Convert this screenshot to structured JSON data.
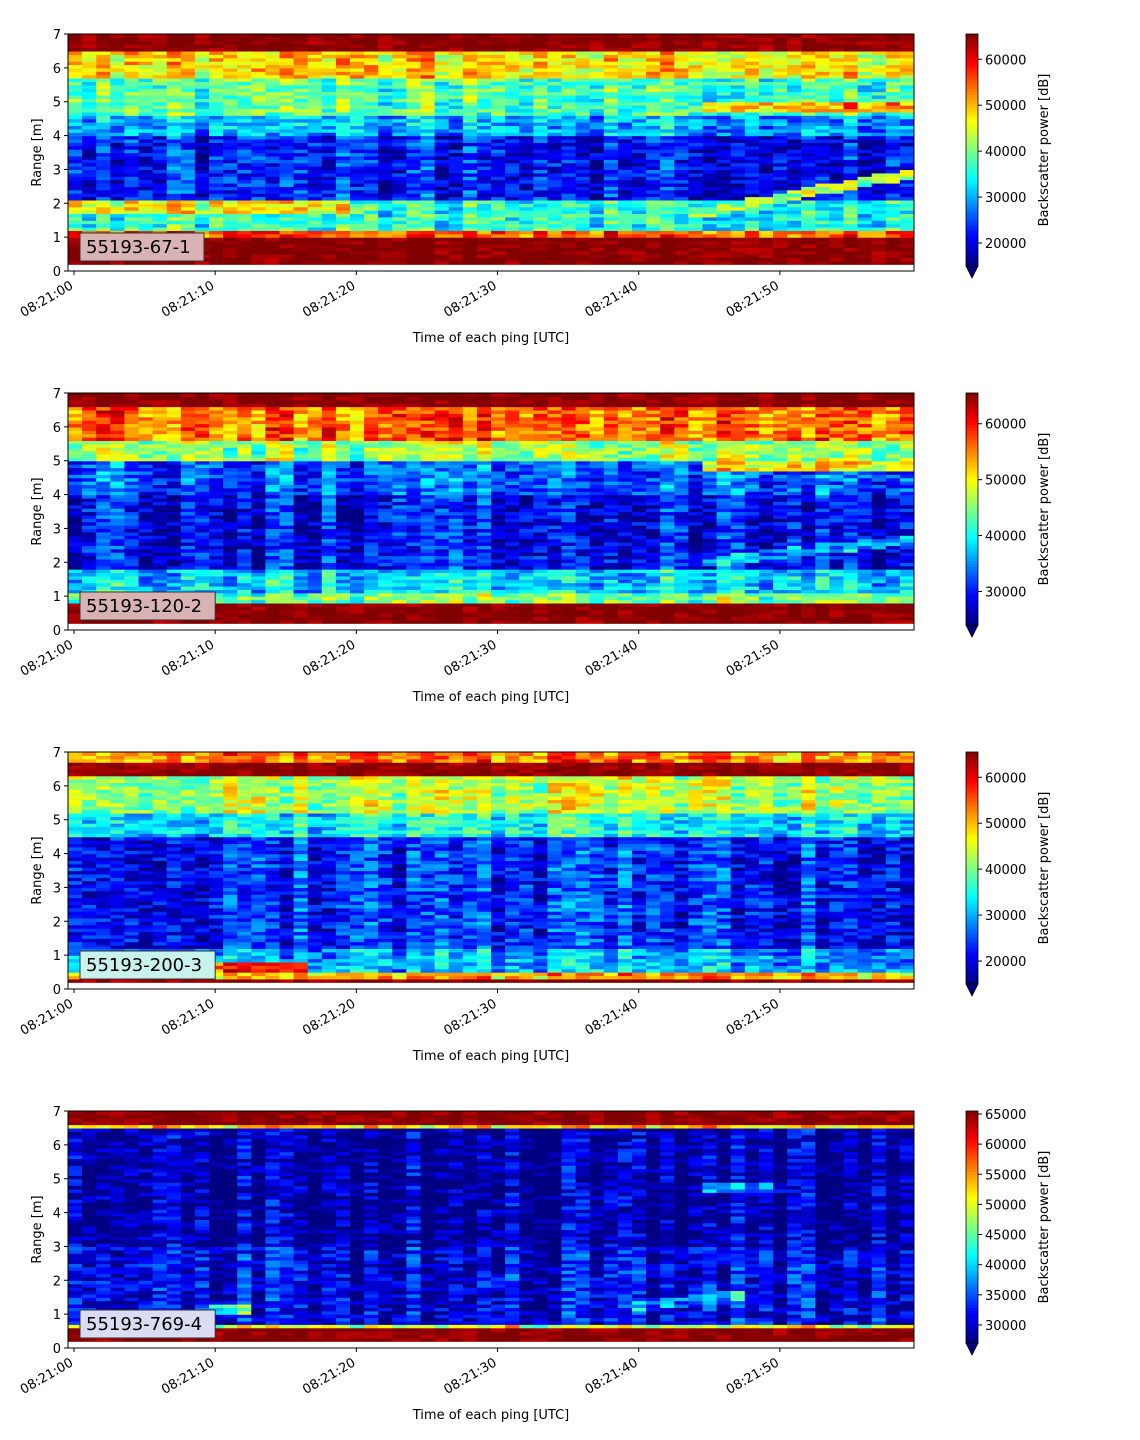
{
  "chart_data": [
    {
      "type": "heatmap",
      "label": "55193-67-1",
      "xlabel": "Time of each ping [UTC]",
      "ylabel": "Range [m]",
      "colorbar_label": "Backscatter power [dB]",
      "colormap": "jet",
      "x_ticks": [
        "08:21:00",
        "08:21:10",
        "08:21:20",
        "08:21:30",
        "08:21:40",
        "08:21:50"
      ],
      "x_range_seconds": [
        0,
        59.5
      ],
      "y_ticks": [
        "0",
        "1",
        "2",
        "3",
        "4",
        "5",
        "6",
        "7"
      ],
      "ylim": [
        0,
        7
      ],
      "cbar_ticks": [
        "20000",
        "30000",
        "40000",
        "50000",
        "60000"
      ],
      "cbar_range": [
        15000,
        65500
      ],
      "cbar_extend": "min",
      "label_box_color": "#d9b3b3",
      "bands": [
        {
          "lo": 0.2,
          "hi": 1.05,
          "value": 65000
        },
        {
          "lo": 1.05,
          "hi": 1.2,
          "value": 55000
        },
        {
          "lo": 1.2,
          "hi": 2.1,
          "value": 36000
        },
        {
          "lo": 1.7,
          "hi": 2.1,
          "value": 46000,
          "t_end": 20
        },
        {
          "lo": 2.1,
          "hi": 4.0,
          "value": 22000
        },
        {
          "lo": 4.0,
          "hi": 4.6,
          "value": 30000
        },
        {
          "lo": 4.6,
          "hi": 5.7,
          "value": 38000
        },
        {
          "lo": 5.7,
          "hi": 6.5,
          "value": 48000
        },
        {
          "lo": 6.5,
          "hi": 7.0,
          "value": 64000
        }
      ],
      "features": [
        {
          "t0": 44,
          "r0": 1.7,
          "t1": 59.5,
          "r1": 2.9,
          "value": 44000
        },
        {
          "t0": 45,
          "r0": 4.85,
          "t1": 59.5,
          "r1": 4.85,
          "value": 52000
        }
      ]
    },
    {
      "type": "heatmap",
      "label": "55193-120-2",
      "xlabel": "Time of each ping [UTC]",
      "ylabel": "Range [m]",
      "colorbar_label": "Backscatter power [dB]",
      "colormap": "jet",
      "x_ticks": [
        "08:21:00",
        "08:21:10",
        "08:21:20",
        "08:21:30",
        "08:21:40",
        "08:21:50"
      ],
      "x_range_seconds": [
        0,
        59.5
      ],
      "y_ticks": [
        "0",
        "1",
        "2",
        "3",
        "4",
        "5",
        "6",
        "7"
      ],
      "ylim": [
        0,
        7
      ],
      "cbar_ticks": [
        "30000",
        "40000",
        "50000",
        "60000"
      ],
      "cbar_range": [
        24000,
        65500
      ],
      "cbar_extend": "min",
      "label_box_color": "#d9b3b3",
      "bands": [
        {
          "lo": 0.2,
          "hi": 0.85,
          "value": 65000
        },
        {
          "lo": 0.85,
          "hi": 1.1,
          "value": 45000
        },
        {
          "lo": 1.1,
          "hi": 1.8,
          "value": 38000
        },
        {
          "lo": 1.8,
          "hi": 4.0,
          "value": 29000
        },
        {
          "lo": 4.0,
          "hi": 5.0,
          "value": 33000
        },
        {
          "lo": 5.0,
          "hi": 5.6,
          "value": 46000
        },
        {
          "lo": 5.6,
          "hi": 6.6,
          "value": 56000
        },
        {
          "lo": 6.6,
          "hi": 7.0,
          "value": 65000
        }
      ],
      "features": [
        {
          "t0": 44,
          "r0": 2.0,
          "t1": 59.5,
          "r1": 2.7,
          "value": 36000
        },
        {
          "t0": 45,
          "r0": 4.85,
          "t1": 59.5,
          "r1": 4.85,
          "value": 50000
        }
      ]
    },
    {
      "type": "heatmap",
      "label": "55193-200-3",
      "xlabel": "Time of each ping [UTC]",
      "ylabel": "Range [m]",
      "colorbar_label": "Backscatter power [dB]",
      "colormap": "jet",
      "x_ticks": [
        "08:21:00",
        "08:21:10",
        "08:21:20",
        "08:21:30",
        "08:21:40",
        "08:21:50"
      ],
      "x_range_seconds": [
        0,
        59.5
      ],
      "y_ticks": [
        "0",
        "1",
        "2",
        "3",
        "4",
        "5",
        "6",
        "7"
      ],
      "ylim": [
        0,
        7
      ],
      "cbar_ticks": [
        "20000",
        "30000",
        "40000",
        "50000",
        "60000"
      ],
      "cbar_range": [
        15000,
        65500
      ],
      "cbar_extend": "min",
      "label_box_color": "#c8f2ec",
      "bands": [
        {
          "lo": 0.2,
          "hi": 0.3,
          "value": 65000
        },
        {
          "lo": 0.3,
          "hi": 0.55,
          "value": 50000
        },
        {
          "lo": 0.55,
          "hi": 1.2,
          "value": 30000
        },
        {
          "lo": 1.2,
          "hi": 4.5,
          "value": 23000
        },
        {
          "lo": 4.5,
          "hi": 5.2,
          "value": 34000
        },
        {
          "lo": 5.2,
          "hi": 6.3,
          "value": 43000
        },
        {
          "lo": 6.3,
          "hi": 6.7,
          "value": 64000
        },
        {
          "lo": 6.7,
          "hi": 7.0,
          "value": 53000
        }
      ],
      "features": [
        {
          "t0": 10,
          "r0": 0.65,
          "t1": 17,
          "r1": 0.65,
          "value": 56000
        }
      ]
    },
    {
      "type": "heatmap",
      "label": "55193-769-4",
      "xlabel": "Time of each ping [UTC]",
      "ylabel": "Range [m]",
      "colorbar_label": "Backscatter power [dB]",
      "colormap": "jet",
      "x_ticks": [
        "08:21:00",
        "08:21:10",
        "08:21:20",
        "08:21:30",
        "08:21:40",
        "08:21:50"
      ],
      "x_range_seconds": [
        0,
        59.5
      ],
      "y_ticks": [
        "0",
        "1",
        "2",
        "3",
        "4",
        "5",
        "6",
        "7"
      ],
      "ylim": [
        0,
        7
      ],
      "cbar_ticks": [
        "30000",
        "35000",
        "40000",
        "45000",
        "50000",
        "55000",
        "60000",
        "65000"
      ],
      "cbar_range": [
        27000,
        65500
      ],
      "cbar_extend": "min",
      "label_box_color": "#d9dcf2",
      "bands": [
        {
          "lo": 0.2,
          "hi": 0.6,
          "value": 65000
        },
        {
          "lo": 0.6,
          "hi": 0.75,
          "value": 50000
        },
        {
          "lo": 0.75,
          "hi": 3.0,
          "value": 31000
        },
        {
          "lo": 3.0,
          "hi": 6.5,
          "value": 28500
        },
        {
          "lo": 6.5,
          "hi": 6.6,
          "value": 52000
        },
        {
          "lo": 6.6,
          "hi": 7.0,
          "value": 64000
        }
      ],
      "features": [
        {
          "t0": 10,
          "r0": 1.1,
          "t1": 13,
          "r1": 1.1,
          "value": 45000
        },
        {
          "t0": 40,
          "r0": 1.25,
          "t1": 48,
          "r1": 1.6,
          "value": 38000
        },
        {
          "t0": 45,
          "r0": 4.75,
          "t1": 51,
          "r1": 4.75,
          "value": 35000
        }
      ]
    }
  ]
}
